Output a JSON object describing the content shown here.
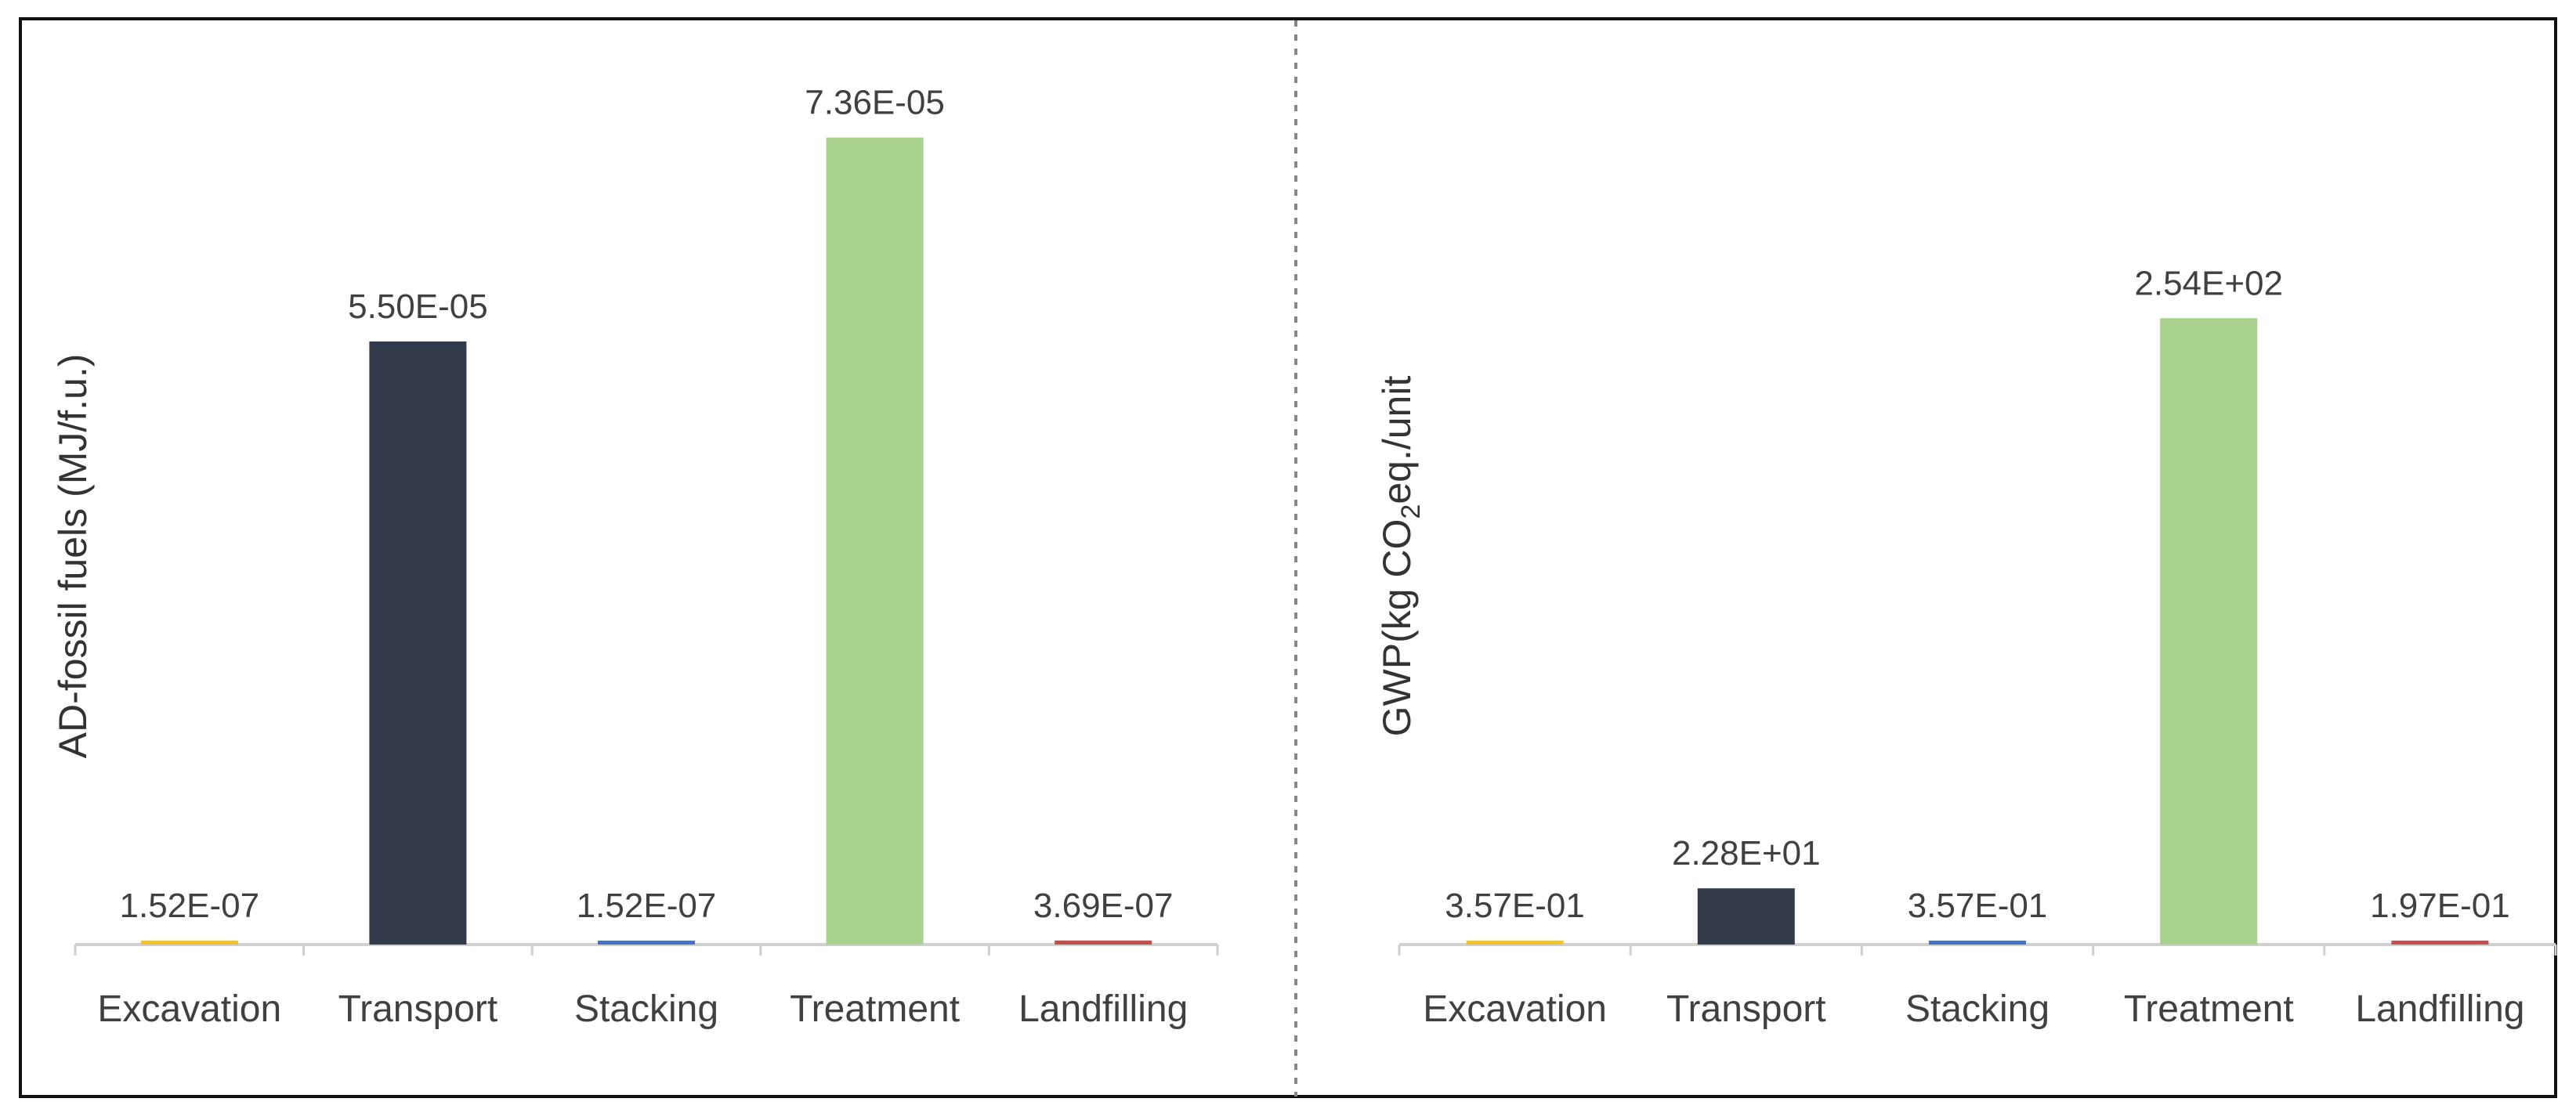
{
  "chart_data": [
    {
      "type": "bar",
      "categories": [
        "Excavation",
        "Transport",
        "Stacking",
        "Treatment",
        "Landfilling"
      ],
      "values": [
        1.52e-07,
        5.5e-05,
        1.52e-07,
        7.36e-05,
        3.69e-07
      ],
      "data_labels": [
        "1.52E-07",
        "5.50E-05",
        "1.52E-07",
        "7.36E-05",
        "3.69E-07"
      ],
      "ylabel": "AD-fossil fuels (MJ/f.u.)",
      "ylim": [
        0,
        8e-05
      ],
      "grid": false,
      "colors": [
        "#f2c12e",
        "#323a4c",
        "#4472c4",
        "#a9d18e",
        "#c0504d"
      ]
    },
    {
      "type": "bar",
      "categories": [
        "Excavation",
        "Transport",
        "Stacking",
        "Treatment",
        "Landfilling"
      ],
      "values": [
        0.357,
        22.8,
        0.357,
        254,
        0.197
      ],
      "data_labels": [
        "3.57E-01",
        "2.28E+01",
        "3.57E-01",
        "2.54E+02",
        "1.97E-01"
      ],
      "ylabel_parts": {
        "before": "GWP(kg CO",
        "sub": "2",
        "after": "eq./unit"
      },
      "ylim": [
        0,
        350
      ],
      "grid": false,
      "colors": [
        "#f2c12e",
        "#323a4c",
        "#4472c4",
        "#a9d18e",
        "#c0504d"
      ]
    }
  ]
}
